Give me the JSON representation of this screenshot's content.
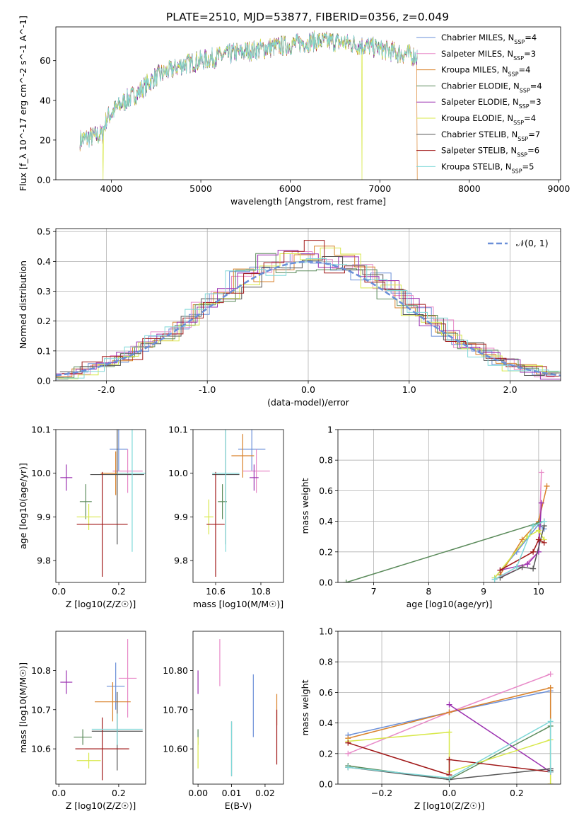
{
  "figure_title": "PLATE=2510, MJD=53877, FIBERID=0356, z=0.049",
  "models": [
    {
      "name": "Chabrier MILES",
      "nssp": "4",
      "color": "#6a8fd8"
    },
    {
      "name": "Salpeter MILES",
      "nssp": "3",
      "color": "#e88ac8"
    },
    {
      "name": "Kroupa MILES",
      "nssp": "4",
      "color": "#d9822b"
    },
    {
      "name": "Chabrier ELODIE",
      "nssp": "4",
      "color": "#5a8a5a"
    },
    {
      "name": "Salpeter ELODIE",
      "nssp": "3",
      "color": "#9b30b0"
    },
    {
      "name": "Kroupa ELODIE",
      "nssp": "4",
      "color": "#d8e84a"
    },
    {
      "name": "Chabrier STELIB",
      "nssp": "7",
      "color": "#555555"
    },
    {
      "name": "Salpeter STELIB",
      "nssp": "6",
      "color": "#a01818"
    },
    {
      "name": "Kroupa STELIB",
      "nssp": "5",
      "color": "#7fd8d8"
    }
  ],
  "chart_data": [
    {
      "id": "spectrum",
      "type": "line",
      "xlabel": "wavelength [Angstrom, rest frame]",
      "ylabel": "Flux [f_λ 10^-17 erg cm^-2 s^-1 A^-1]",
      "xlim": [
        3380,
        9020
      ],
      "ylim": [
        0,
        77
      ],
      "xticks": [
        4000,
        5000,
        6000,
        7000,
        8000,
        9000
      ],
      "yticks": [
        0,
        20,
        40,
        60
      ],
      "legend_position": "right",
      "continuum": {
        "x": [
          3650,
          3900,
          3950,
          4100,
          4300,
          4500,
          4800,
          5100,
          5400,
          5700,
          6000,
          6300,
          6600,
          6900,
          7200,
          7420
        ],
        "y": [
          20,
          23,
          31,
          38,
          44,
          52,
          58,
          61,
          64,
          66,
          68,
          70,
          69,
          67,
          64,
          62
        ]
      },
      "drops": [
        {
          "x": 3910,
          "model": 5
        },
        {
          "x": 6800,
          "model": 5
        },
        {
          "x": 7420,
          "model": 2
        },
        {
          "x": 7425,
          "model": 7
        }
      ]
    },
    {
      "id": "residuals",
      "type": "step",
      "xlabel": "(data-model)/error",
      "ylabel": "Normed distribution",
      "xlim": [
        -2.5,
        2.5
      ],
      "ylim": [
        0,
        0.51
      ],
      "xticks": [
        -2,
        -1,
        0,
        1,
        2
      ],
      "yticks": [
        0.0,
        0.1,
        0.2,
        0.3,
        0.4,
        0.5
      ],
      "grid": true,
      "reference": {
        "label": "𝒩(0, 1)",
        "mean": 0,
        "sigma": 1,
        "color": "#6a8fd8"
      },
      "legend_position": "upper right"
    },
    {
      "id": "age_vs_Z",
      "type": "errorbar",
      "xlabel": "Z [log10(Z/Z☉)]",
      "ylabel": "age [log10(age/yr)]",
      "xlim": [
        -0.01,
        0.29
      ],
      "ylim": [
        9.75,
        10.1
      ],
      "xticks": [
        0.0,
        0.2
      ],
      "yticks": [
        9.8,
        9.9,
        10.0,
        10.1
      ],
      "points": [
        {
          "m": 0,
          "x": 0.2,
          "y": 10.055,
          "xerr": 0.03,
          "yerr": 0.05
        },
        {
          "m": 1,
          "x": 0.23,
          "y": 10.005,
          "xerr": 0.05,
          "yerr": 0.05
        },
        {
          "m": 2,
          "x": 0.19,
          "y": 10.0,
          "xerr": 0.05,
          "yerr": 0.05
        },
        {
          "m": 3,
          "x": 0.09,
          "y": 9.935,
          "xerr": 0.02,
          "yerr": 0.04
        },
        {
          "m": 4,
          "x": 0.025,
          "y": 9.99,
          "xerr": 0.02,
          "yerr": 0.03
        },
        {
          "m": 5,
          "x": 0.1,
          "y": 9.9,
          "xerr": 0.04,
          "yerr": 0.03
        },
        {
          "m": 6,
          "x": 0.195,
          "y": 9.997,
          "xerr": 0.09,
          "yerr": 0.16
        },
        {
          "m": 7,
          "x": 0.145,
          "y": 9.883,
          "xerr": 0.085,
          "yerr": 0.12
        },
        {
          "m": 8,
          "x": 0.245,
          "y": 10.0,
          "xerr": 0.05,
          "yerr": 0.18
        }
      ]
    },
    {
      "id": "age_vs_mass",
      "type": "errorbar",
      "xlabel": "mass [log10(M/M☉)]",
      "ylabel": "",
      "xlim": [
        10.5,
        10.9
      ],
      "ylim": [
        9.75,
        10.1
      ],
      "xticks": [
        10.6,
        10.8
      ],
      "yticks": [
        9.8,
        9.9,
        10.0,
        10.1
      ],
      "points": [
        {
          "m": 0,
          "x": 10.76,
          "y": 10.055,
          "xerr": 0.06,
          "yerr": 0.05
        },
        {
          "m": 1,
          "x": 10.78,
          "y": 10.005,
          "xerr": 0.06,
          "yerr": 0.05
        },
        {
          "m": 2,
          "x": 10.72,
          "y": 10.04,
          "xerr": 0.05,
          "yerr": 0.05
        },
        {
          "m": 3,
          "x": 10.63,
          "y": 9.935,
          "xerr": 0.02,
          "yerr": 0.04
        },
        {
          "m": 4,
          "x": 10.77,
          "y": 9.99,
          "xerr": 0.02,
          "yerr": 0.03
        },
        {
          "m": 5,
          "x": 10.57,
          "y": 9.9,
          "xerr": 0.02,
          "yerr": 0.04
        },
        {
          "m": 6,
          "x": 10.645,
          "y": 9.997,
          "xerr": 0.06,
          "yerr": 0.16
        },
        {
          "m": 7,
          "x": 10.6,
          "y": 9.883,
          "xerr": 0.04,
          "yerr": 0.12
        },
        {
          "m": 8,
          "x": 10.645,
          "y": 10.0,
          "xerr": 0.06,
          "yerr": 0.18
        }
      ]
    },
    {
      "id": "massweight_vs_age",
      "type": "line",
      "xlabel": "age [log10(age/yr)]",
      "ylabel": "mass weight",
      "xlim": [
        6.35,
        10.4
      ],
      "ylim": [
        0,
        1.0
      ],
      "xticks": [
        7,
        8,
        9,
        10
      ],
      "yticks": [
        0.0,
        0.2,
        0.4,
        0.6,
        0.8,
        1.0
      ],
      "grid": true,
      "series": [
        {
          "m": 0,
          "x": [
            9.2,
            9.6,
            10.0,
            10.1
          ],
          "y": [
            0.03,
            0.2,
            0.38,
            0.35
          ]
        },
        {
          "m": 1,
          "x": [
            9.2,
            9.7,
            10.0,
            10.05
          ],
          "y": [
            0.02,
            0.1,
            0.2,
            0.72
          ]
        },
        {
          "m": 2,
          "x": [
            9.3,
            9.7,
            10.0,
            10.15
          ],
          "y": [
            0.05,
            0.28,
            0.4,
            0.63
          ]
        },
        {
          "m": 3,
          "x": [
            6.5,
            10.0,
            10.1
          ],
          "y": [
            0.0,
            0.39,
            0.4
          ]
        },
        {
          "m": 4,
          "x": [
            9.3,
            9.8,
            10.0,
            10.05
          ],
          "y": [
            0.08,
            0.12,
            0.2,
            0.52
          ]
        },
        {
          "m": 5,
          "x": [
            9.2,
            9.8,
            10.0,
            10.1
          ],
          "y": [
            0.03,
            0.3,
            0.34,
            0.28
          ]
        },
        {
          "m": 6,
          "x": [
            9.3,
            9.7,
            9.9,
            10.1
          ],
          "y": [
            0.03,
            0.1,
            0.09,
            0.37
          ]
        },
        {
          "m": 7,
          "x": [
            9.3,
            9.9,
            10.0,
            10.1
          ],
          "y": [
            0.08,
            0.2,
            0.28,
            0.26
          ]
        },
        {
          "m": 8,
          "x": [
            9.2,
            9.6,
            9.9,
            10.1
          ],
          "y": [
            0.02,
            0.1,
            0.37,
            0.4
          ]
        }
      ]
    },
    {
      "id": "mass_vs_Z",
      "type": "errorbar",
      "xlabel": "Z [log10(Z/Z☉)]",
      "ylabel": "mass [log10(M/M☉)]",
      "xlim": [
        -0.01,
        0.29
      ],
      "ylim": [
        10.51,
        10.9
      ],
      "xticks": [
        0.0,
        0.2
      ],
      "yticks": [
        10.6,
        10.7,
        10.8
      ],
      "points": [
        {
          "m": 0,
          "x": 0.19,
          "y": 10.76,
          "xerr": 0.03,
          "yerr": 0.06
        },
        {
          "m": 1,
          "x": 0.23,
          "y": 10.78,
          "xerr": 0.03,
          "yerr": 0.1
        },
        {
          "m": 2,
          "x": 0.18,
          "y": 10.72,
          "xerr": 0.06,
          "yerr": 0.05
        },
        {
          "m": 3,
          "x": 0.08,
          "y": 10.63,
          "xerr": 0.03,
          "yerr": 0.02
        },
        {
          "m": 4,
          "x": 0.025,
          "y": 10.77,
          "xerr": 0.02,
          "yerr": 0.03
        },
        {
          "m": 5,
          "x": 0.1,
          "y": 10.57,
          "xerr": 0.04,
          "yerr": 0.02
        },
        {
          "m": 6,
          "x": 0.195,
          "y": 10.645,
          "xerr": 0.085,
          "yerr": 0.1
        },
        {
          "m": 7,
          "x": 0.145,
          "y": 10.6,
          "xerr": 0.09,
          "yerr": 0.08
        },
        {
          "m": 8,
          "x": 0.195,
          "y": 10.65,
          "xerr": 0.085,
          "yerr": 0.04
        }
      ]
    },
    {
      "id": "mass_vs_ebv",
      "type": "errorbar",
      "xlabel": "E(B-V)",
      "ylabel": "",
      "xlim": [
        -0.0015,
        0.0255
      ],
      "ylim": [
        10.51,
        10.9
      ],
      "xticks": [
        0.0,
        0.01,
        0.02
      ],
      "yticks": [
        10.6,
        10.7,
        10.8
      ],
      "points": [
        {
          "m": 0,
          "x": 0.0165,
          "y": 10.71,
          "xerr": 0,
          "yerr": 0.08
        },
        {
          "m": 1,
          "x": 0.0065,
          "y": 10.82,
          "xerr": 0,
          "yerr": 0.06
        },
        {
          "m": 2,
          "x": 0.0235,
          "y": 10.7,
          "xerr": 0,
          "yerr": 0.04
        },
        {
          "m": 3,
          "x": 0.0,
          "y": 10.63,
          "xerr": 0,
          "yerr": 0.02
        },
        {
          "m": 4,
          "x": 0.0,
          "y": 10.77,
          "xerr": 0,
          "yerr": 0.03
        },
        {
          "m": 5,
          "x": 0.0,
          "y": 10.59,
          "xerr": 0,
          "yerr": 0.04
        },
        {
          "m": 6,
          "x": 0.01,
          "y": 10.6,
          "xerr": 0,
          "yerr": 0.07
        },
        {
          "m": 7,
          "x": 0.0235,
          "y": 10.63,
          "xerr": 0,
          "yerr": 0.07
        },
        {
          "m": 8,
          "x": 0.01,
          "y": 10.6,
          "xerr": 0,
          "yerr": 0.07
        }
      ]
    },
    {
      "id": "massweight_vs_Z",
      "type": "line",
      "xlabel": "Z [log10(Z/Z☉)]",
      "ylabel": "mass weight",
      "xlim": [
        -0.33,
        0.33
      ],
      "ylim": [
        0,
        1.0
      ],
      "xticks": [
        -0.2,
        0.0,
        0.2
      ],
      "yticks": [
        0.0,
        0.2,
        0.4,
        0.6,
        0.8,
        1.0
      ],
      "grid": true,
      "series": [
        {
          "m": 0,
          "x": [
            -0.3,
            0.0,
            0.3,
            0.3
          ],
          "y": [
            0.32,
            0.47,
            0.61,
            0.08
          ]
        },
        {
          "m": 1,
          "x": [
            -0.3,
            0.0,
            0.3
          ],
          "y": [
            0.2,
            0.47,
            0.72
          ]
        },
        {
          "m": 2,
          "x": [
            -0.3,
            0.0,
            0.3,
            0.3
          ],
          "y": [
            0.3,
            0.47,
            0.63,
            0.0
          ]
        },
        {
          "m": 3,
          "x": [
            -0.3,
            0.0,
            0.3,
            0.3
          ],
          "y": [
            0.12,
            0.03,
            0.38,
            0.1
          ]
        },
        {
          "m": 4,
          "x": [
            -0.0,
            0.3,
            0.3
          ],
          "y": [
            0.52,
            0.08,
            0.1
          ]
        },
        {
          "m": 5,
          "x": [
            -0.3,
            0.0,
            0.0,
            0.3,
            0.3
          ],
          "y": [
            0.28,
            0.34,
            0.08,
            0.29,
            0.0
          ]
        },
        {
          "m": 6,
          "x": [
            -0.3,
            0.0,
            0.3,
            0.3
          ],
          "y": [
            0.11,
            0.03,
            0.1,
            0.09
          ]
        },
        {
          "m": 7,
          "x": [
            -0.3,
            0.0,
            0.0,
            0.3
          ],
          "y": [
            0.27,
            0.06,
            0.16,
            0.08
          ]
        },
        {
          "m": 8,
          "x": [
            -0.3,
            0.0,
            0.3,
            0.3
          ],
          "y": [
            0.11,
            0.04,
            0.41,
            0.08
          ]
        }
      ]
    }
  ]
}
